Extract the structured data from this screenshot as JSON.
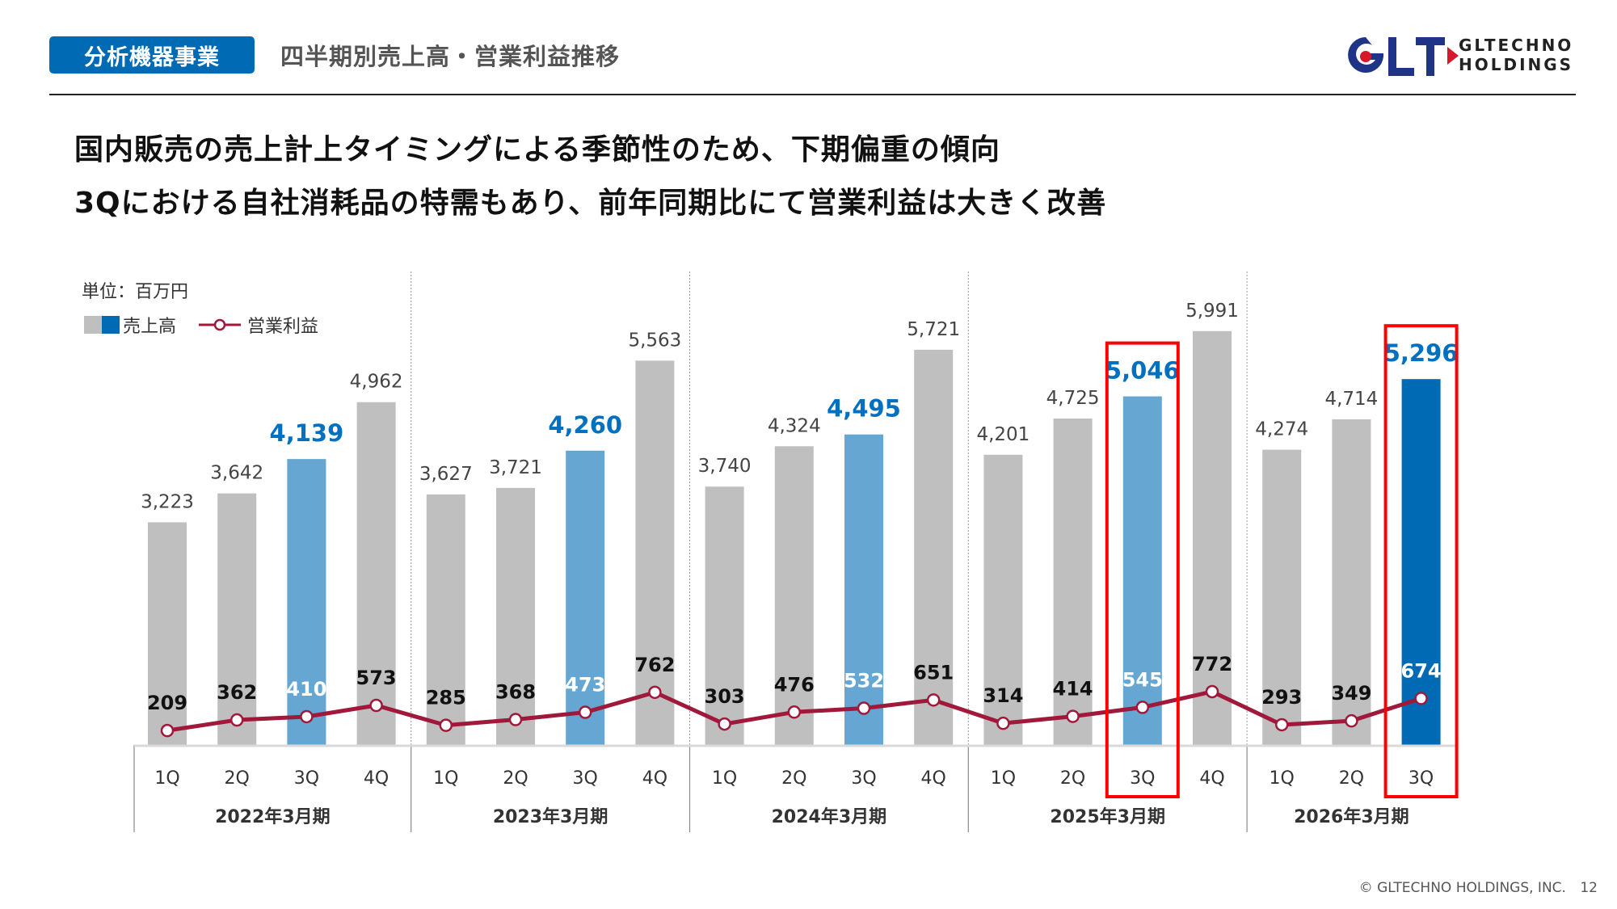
{
  "header": {
    "badge": "分析機器事業",
    "subtitle": "四半期別売上高・営業利益推移",
    "logo_line1": "GLTECHNO",
    "logo_line2": "HOLDINGS",
    "logo_mark": "GLT"
  },
  "headline": {
    "line1": "国内販売の売上計上タイミングによる季節性のため、下期偏重の傾向",
    "line2": "3Qにおける自社消耗品の特需もあり、前年同期比にて営業利益は大きく改善"
  },
  "footer": {
    "copyright": "© GLTECHNO HOLDINGS, INC.",
    "page": "12"
  },
  "colors": {
    "gray_bar": "#bfbfbf",
    "light_blue_bar": "#66a6d2",
    "dark_blue_bar": "#006bb4",
    "profit_line": "#a0183a",
    "highlight_box": "#ff0000",
    "blue_label": "#0070c0"
  },
  "chart_data": {
    "type": "bar",
    "unit_label": "単位：百万円",
    "legend": [
      {
        "name": "売上高",
        "type": "bar"
      },
      {
        "name": "営業利益",
        "type": "line"
      }
    ],
    "legend_position": "top-left",
    "groups": [
      {
        "label": "2022年3月期",
        "quarters": [
          "1Q",
          "2Q",
          "3Q",
          "4Q"
        ]
      },
      {
        "label": "2023年3月期",
        "quarters": [
          "1Q",
          "2Q",
          "3Q",
          "4Q"
        ]
      },
      {
        "label": "2024年3月期",
        "quarters": [
          "1Q",
          "2Q",
          "3Q",
          "4Q"
        ]
      },
      {
        "label": "2025年3月期",
        "quarters": [
          "1Q",
          "2Q",
          "3Q",
          "4Q"
        ]
      },
      {
        "label": "2026年3月期",
        "quarters": [
          "1Q",
          "2Q",
          "3Q"
        ]
      }
    ],
    "series": [
      {
        "name": "売上高",
        "values": [
          3223,
          3642,
          4139,
          4962,
          3627,
          3721,
          4260,
          5563,
          3740,
          4324,
          4495,
          5721,
          4201,
          4725,
          5046,
          5991,
          4274,
          4714,
          5296
        ]
      },
      {
        "name": "営業利益",
        "values": [
          209,
          362,
          410,
          573,
          285,
          368,
          473,
          762,
          303,
          476,
          532,
          651,
          314,
          414,
          545,
          772,
          293,
          349,
          674
        ]
      }
    ],
    "value_labels": {
      "sales": [
        "3,223",
        "3,642",
        "4,139",
        "4,962",
        "3,627",
        "3,721",
        "4,260",
        "5,563",
        "3,740",
        "4,324",
        "4,495",
        "5,721",
        "4,201",
        "4,725",
        "5,046",
        "5,991",
        "4,274",
        "4,714",
        "5,296"
      ],
      "profit": [
        "209",
        "362",
        "410",
        "573",
        "285",
        "368",
        "473",
        "762",
        "303",
        "476",
        "532",
        "651",
        "314",
        "414",
        "545",
        "772",
        "293",
        "349",
        "674"
      ]
    },
    "highlighted_3q": [
      2,
      6,
      10,
      14,
      18
    ],
    "current_period_index": 18,
    "boxed_indices": [
      14,
      18
    ],
    "ylim": [
      0,
      6000
    ],
    "grid": false
  }
}
